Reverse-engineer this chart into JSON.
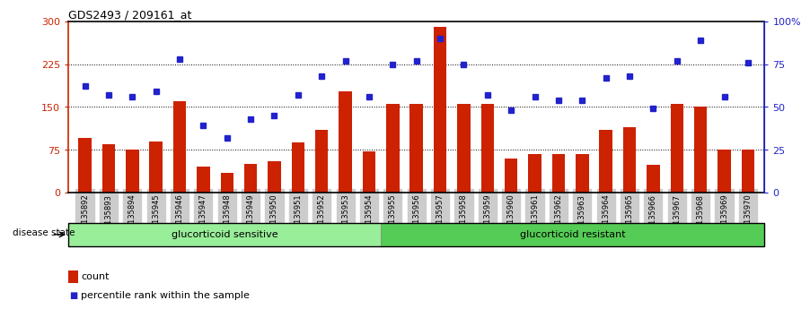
{
  "title": "GDS2493 / 209161_at",
  "categories": [
    "GSM135892",
    "GSM135893",
    "GSM135894",
    "GSM135945",
    "GSM135946",
    "GSM135947",
    "GSM135948",
    "GSM135949",
    "GSM135950",
    "GSM135951",
    "GSM135952",
    "GSM135953",
    "GSM135954",
    "GSM135955",
    "GSM135956",
    "GSM135957",
    "GSM135958",
    "GSM135959",
    "GSM135960",
    "GSM135961",
    "GSM135962",
    "GSM135963",
    "GSM135964",
    "GSM135965",
    "GSM135966",
    "GSM135967",
    "GSM135968",
    "GSM135969",
    "GSM135970"
  ],
  "counts": [
    95,
    85,
    75,
    90,
    160,
    45,
    35,
    50,
    55,
    88,
    110,
    178,
    72,
    155,
    155,
    290,
    155,
    155,
    60,
    68,
    68,
    68,
    110,
    115,
    48,
    155,
    150,
    75,
    75
  ],
  "percentiles_pct": [
    62,
    57,
    56,
    59,
    78,
    39,
    32,
    43,
    45,
    57,
    68,
    77,
    56,
    75,
    77,
    90,
    75,
    57,
    48,
    56,
    54,
    54,
    67,
    68,
    49,
    77,
    89,
    56,
    76
  ],
  "group1_label": "glucorticoid sensitive",
  "group1_count": 13,
  "group2_label": "glucorticoid resistant",
  "group2_count": 16,
  "disease_state_label": "disease state",
  "bar_color": "#cc2200",
  "dot_color": "#2222cc",
  "group1_color": "#99ee99",
  "group2_color": "#55cc55",
  "ylim_left": [
    0,
    300
  ],
  "ylim_right": [
    0,
    100
  ],
  "yticks_left": [
    0,
    75,
    150,
    225,
    300
  ],
  "yticks_right": [
    0,
    25,
    50,
    75,
    100
  ],
  "ytick_labels_right": [
    "0",
    "25",
    "50",
    "75",
    "100%"
  ],
  "hlines": [
    75,
    150,
    225
  ],
  "bg_color": "#ffffff",
  "tick_label_bg": "#cccccc"
}
